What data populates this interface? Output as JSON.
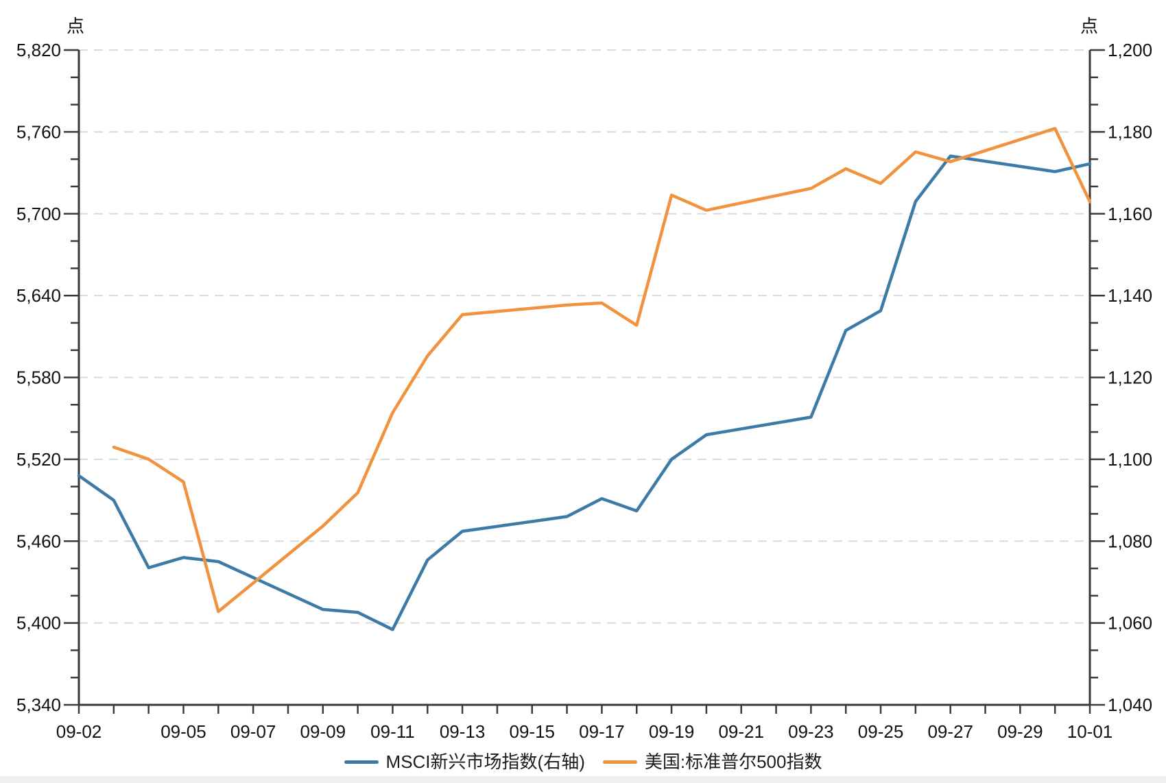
{
  "legend": {
    "items": [
      {
        "label": "MSCI新兴市场指数(右轴)",
        "color": "#3D7AA6"
      },
      {
        "label": "美国:标准普尔500指数",
        "color": "#F0923E"
      }
    ]
  },
  "chart_data": {
    "type": "line",
    "title": "",
    "x_axis": {
      "tick_labels": [
        "09-02",
        "09-05",
        "09-07",
        "09-09",
        "09-11",
        "09-13",
        "09-15",
        "09-17",
        "09-19",
        "09-21",
        "09-23",
        "09-25",
        "09-27",
        "09-29",
        "10-01"
      ],
      "tick_label_days": [
        0,
        3,
        5,
        7,
        9,
        11,
        13,
        15,
        17,
        19,
        21,
        23,
        25,
        27,
        29
      ],
      "days_total": 29
    },
    "left_axis": {
      "unit": "点",
      "min": 5340,
      "max": 5820,
      "major_step": 60,
      "minor_step": 20,
      "tick_labels": [
        "5,820",
        "5,760",
        "5,700",
        "5,640",
        "5,580",
        "5,520",
        "5,460",
        "5,400",
        "5,340"
      ]
    },
    "right_axis": {
      "unit": "点",
      "min": 1040,
      "max": 1200,
      "major_step": 20,
      "minor_divisions": 3,
      "tick_labels": [
        "1,200",
        "1,180",
        "1,160",
        "1,140",
        "1,120",
        "1,100",
        "1,080",
        "1,060",
        "1,040"
      ]
    },
    "grid": {
      "dashed": true,
      "color": "#d9d9d9",
      "at_left_values": [
        5820,
        5760,
        5700,
        5640,
        5580,
        5520,
        5460,
        5400
      ]
    },
    "legend_position": "bottom",
    "series": [
      {
        "key": "msci-em",
        "name": "MSCI新兴市场指数(右轴)",
        "axis": "right",
        "color": "#3D7AA6",
        "dates": [
          "09-02",
          "09-03",
          "09-04",
          "09-05",
          "09-06",
          "09-09",
          "09-10",
          "09-11",
          "09-12",
          "09-13",
          "09-16",
          "09-17",
          "09-18",
          "09-19",
          "09-20",
          "09-23",
          "09-24",
          "09-25",
          "09-26",
          "09-27",
          "09-30",
          "10-01"
        ],
        "days": [
          0,
          1,
          2,
          3,
          4,
          7,
          8,
          9,
          10,
          11,
          14,
          15,
          16,
          17,
          18,
          21,
          22,
          23,
          24,
          25,
          28,
          29
        ],
        "values": [
          1096.0,
          1090.0,
          1073.5,
          1076.0,
          1075.0,
          1063.3,
          1062.6,
          1058.4,
          1075.4,
          1082.4,
          1086.0,
          1090.4,
          1087.4,
          1100.0,
          1106.0,
          1110.3,
          1131.5,
          1136.3,
          1163.0,
          1174.1,
          1170.3,
          1172.2
        ]
      },
      {
        "key": "sp500",
        "name": "美国:标准普尔500指数",
        "axis": "left",
        "color": "#F0923E",
        "dates": [
          "09-03",
          "09-04",
          "09-05",
          "09-06",
          "09-09",
          "09-10",
          "09-11",
          "09-12",
          "09-13",
          "09-16",
          "09-17",
          "09-18",
          "09-19",
          "09-20",
          "09-23",
          "09-24",
          "09-25",
          "09-26",
          "09-27",
          "09-30",
          "10-01"
        ],
        "days": [
          1,
          2,
          3,
          4,
          7,
          8,
          9,
          10,
          11,
          14,
          15,
          16,
          17,
          18,
          21,
          22,
          23,
          24,
          25,
          28,
          29
        ],
        "values": [
          5528.93,
          5520.07,
          5503.41,
          5408.42,
          5471.05,
          5495.52,
          5554.13,
          5595.76,
          5626.02,
          5633.09,
          5634.58,
          5618.26,
          5713.64,
          5702.55,
          5718.57,
          5732.93,
          5722.26,
          5745.37,
          5738.17,
          5762.48,
          5708.75
        ]
      }
    ]
  }
}
